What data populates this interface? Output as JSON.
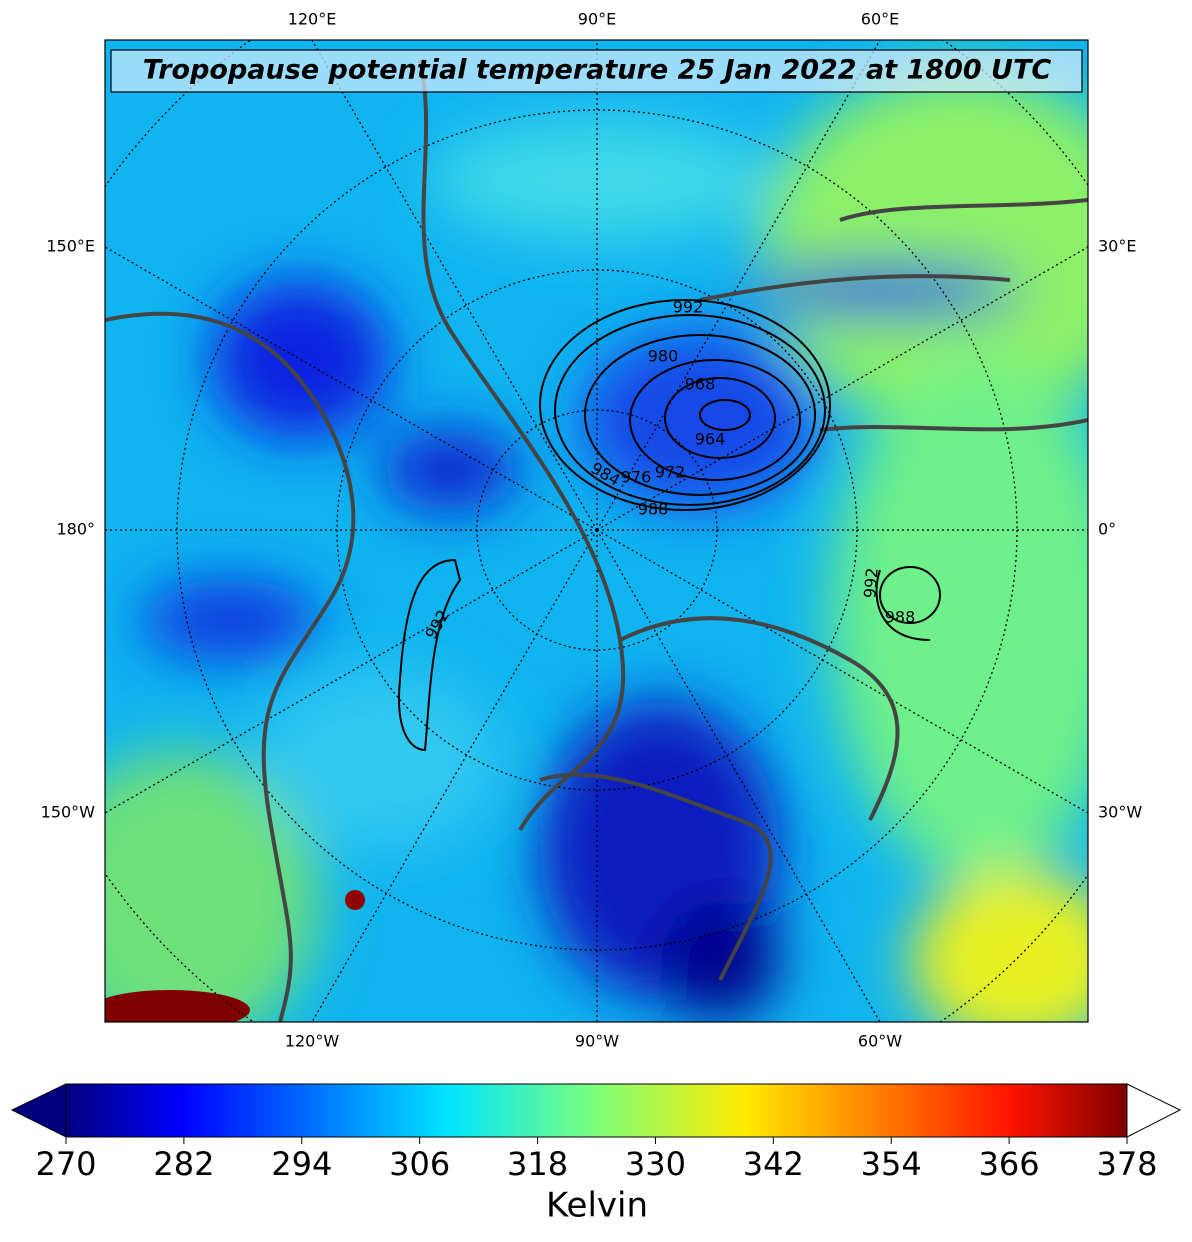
{
  "map": {
    "title": "Tropopause potential temperature 25 Jan 2022 at 1800 UTC",
    "lon_labels_top": [
      "120°E",
      "90°E",
      "60°E"
    ],
    "lon_labels_bottom": [
      "120°W",
      "90°W",
      "60°W"
    ],
    "lat_labels_left": [
      "150°E",
      "180°",
      "150°W"
    ],
    "lat_labels_right": [
      "30°E",
      "0°",
      "30°W"
    ],
    "contour_labels": [
      "992",
      "980",
      "968",
      "964",
      "972",
      "976",
      "984",
      "988",
      "992",
      "992",
      "988"
    ]
  },
  "colorbar": {
    "lim": [
      270,
      378
    ],
    "ticks": [
      270,
      282,
      294,
      306,
      318,
      330,
      342,
      354,
      366,
      378
    ],
    "label": "Kelvin"
  }
}
